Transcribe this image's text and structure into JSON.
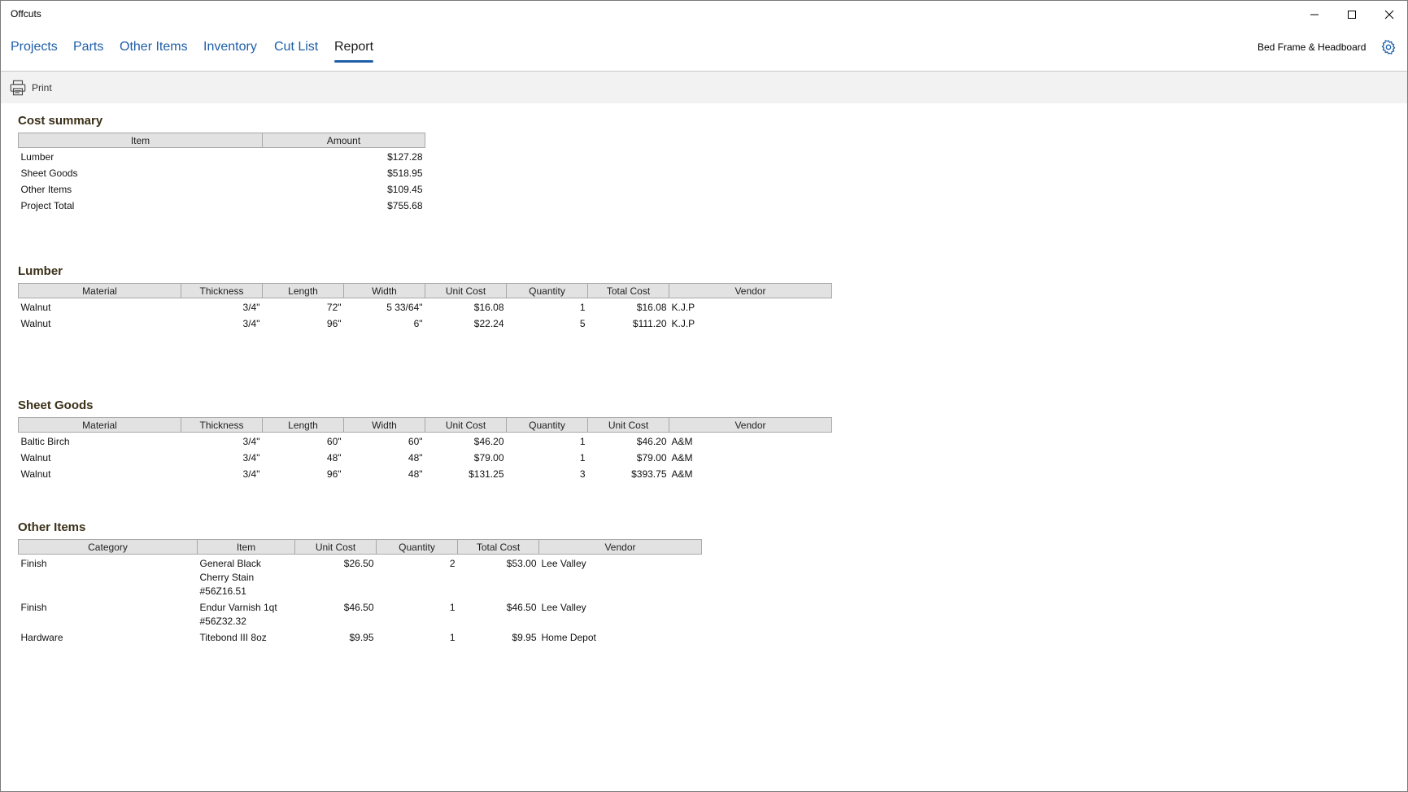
{
  "window": {
    "title": "Offcuts"
  },
  "nav": {
    "tabs": [
      {
        "label": "Projects"
      },
      {
        "label": "Parts"
      },
      {
        "label": "Other Items"
      },
      {
        "label": "Inventory"
      },
      {
        "label": "Cut List"
      },
      {
        "label": "Report"
      }
    ],
    "active_tab": "Report",
    "project_name": "Bed Frame & Headboard",
    "accent_color": "#1e5fa8"
  },
  "toolbar": {
    "print_label": "Print"
  },
  "cost_summary": {
    "title": "Cost summary",
    "headers": [
      "Item",
      "Amount"
    ],
    "rows": [
      [
        "Lumber",
        "$127.28"
      ],
      [
        "Sheet Goods",
        "$518.95"
      ],
      [
        "Other Items",
        "$109.45"
      ],
      [
        "Project Total",
        "$755.68"
      ]
    ]
  },
  "lumber": {
    "title": "Lumber",
    "headers": [
      "Material",
      "Thickness",
      "Length",
      "Width",
      "Unit Cost",
      "Quantity",
      "Total Cost",
      "Vendor"
    ],
    "rows": [
      [
        "Walnut",
        "3/4\"",
        "72\"",
        "5 33/64\"",
        "$16.08",
        "1",
        "$16.08",
        "K.J.P"
      ],
      [
        "Walnut",
        "3/4\"",
        "96\"",
        "6\"",
        "$22.24",
        "5",
        "$111.20",
        "K.J.P"
      ]
    ]
  },
  "sheet_goods": {
    "title": "Sheet Goods",
    "headers": [
      "Material",
      "Thickness",
      "Length",
      "Width",
      "Unit Cost",
      "Quantity",
      "Unit Cost",
      "Vendor"
    ],
    "rows": [
      [
        "Baltic Birch",
        "3/4\"",
        "60\"",
        "60\"",
        "$46.20",
        "1",
        "$46.20",
        "A&M"
      ],
      [
        "Walnut",
        "3/4\"",
        "48\"",
        "48\"",
        "$79.00",
        "1",
        "$79.00",
        "A&M"
      ],
      [
        "Walnut",
        "3/4\"",
        "96\"",
        "48\"",
        "$131.25",
        "3",
        "$393.75",
        "A&M"
      ]
    ]
  },
  "other_items": {
    "title": "Other Items",
    "headers": [
      "Category",
      "Item",
      "Unit Cost",
      "Quantity",
      "Total Cost",
      "Vendor"
    ],
    "rows": [
      [
        "Finish",
        "General Black Cherry Stain #56Z16.51",
        "$26.50",
        "2",
        "$53.00",
        "Lee Valley"
      ],
      [
        "Finish",
        "Endur Varnish 1qt #56Z32.32",
        "$46.50",
        "1",
        "$46.50",
        "Lee Valley"
      ],
      [
        "Hardware",
        "Titebond III 8oz",
        "$9.95",
        "1",
        "$9.95",
        "Home Depot"
      ]
    ]
  }
}
